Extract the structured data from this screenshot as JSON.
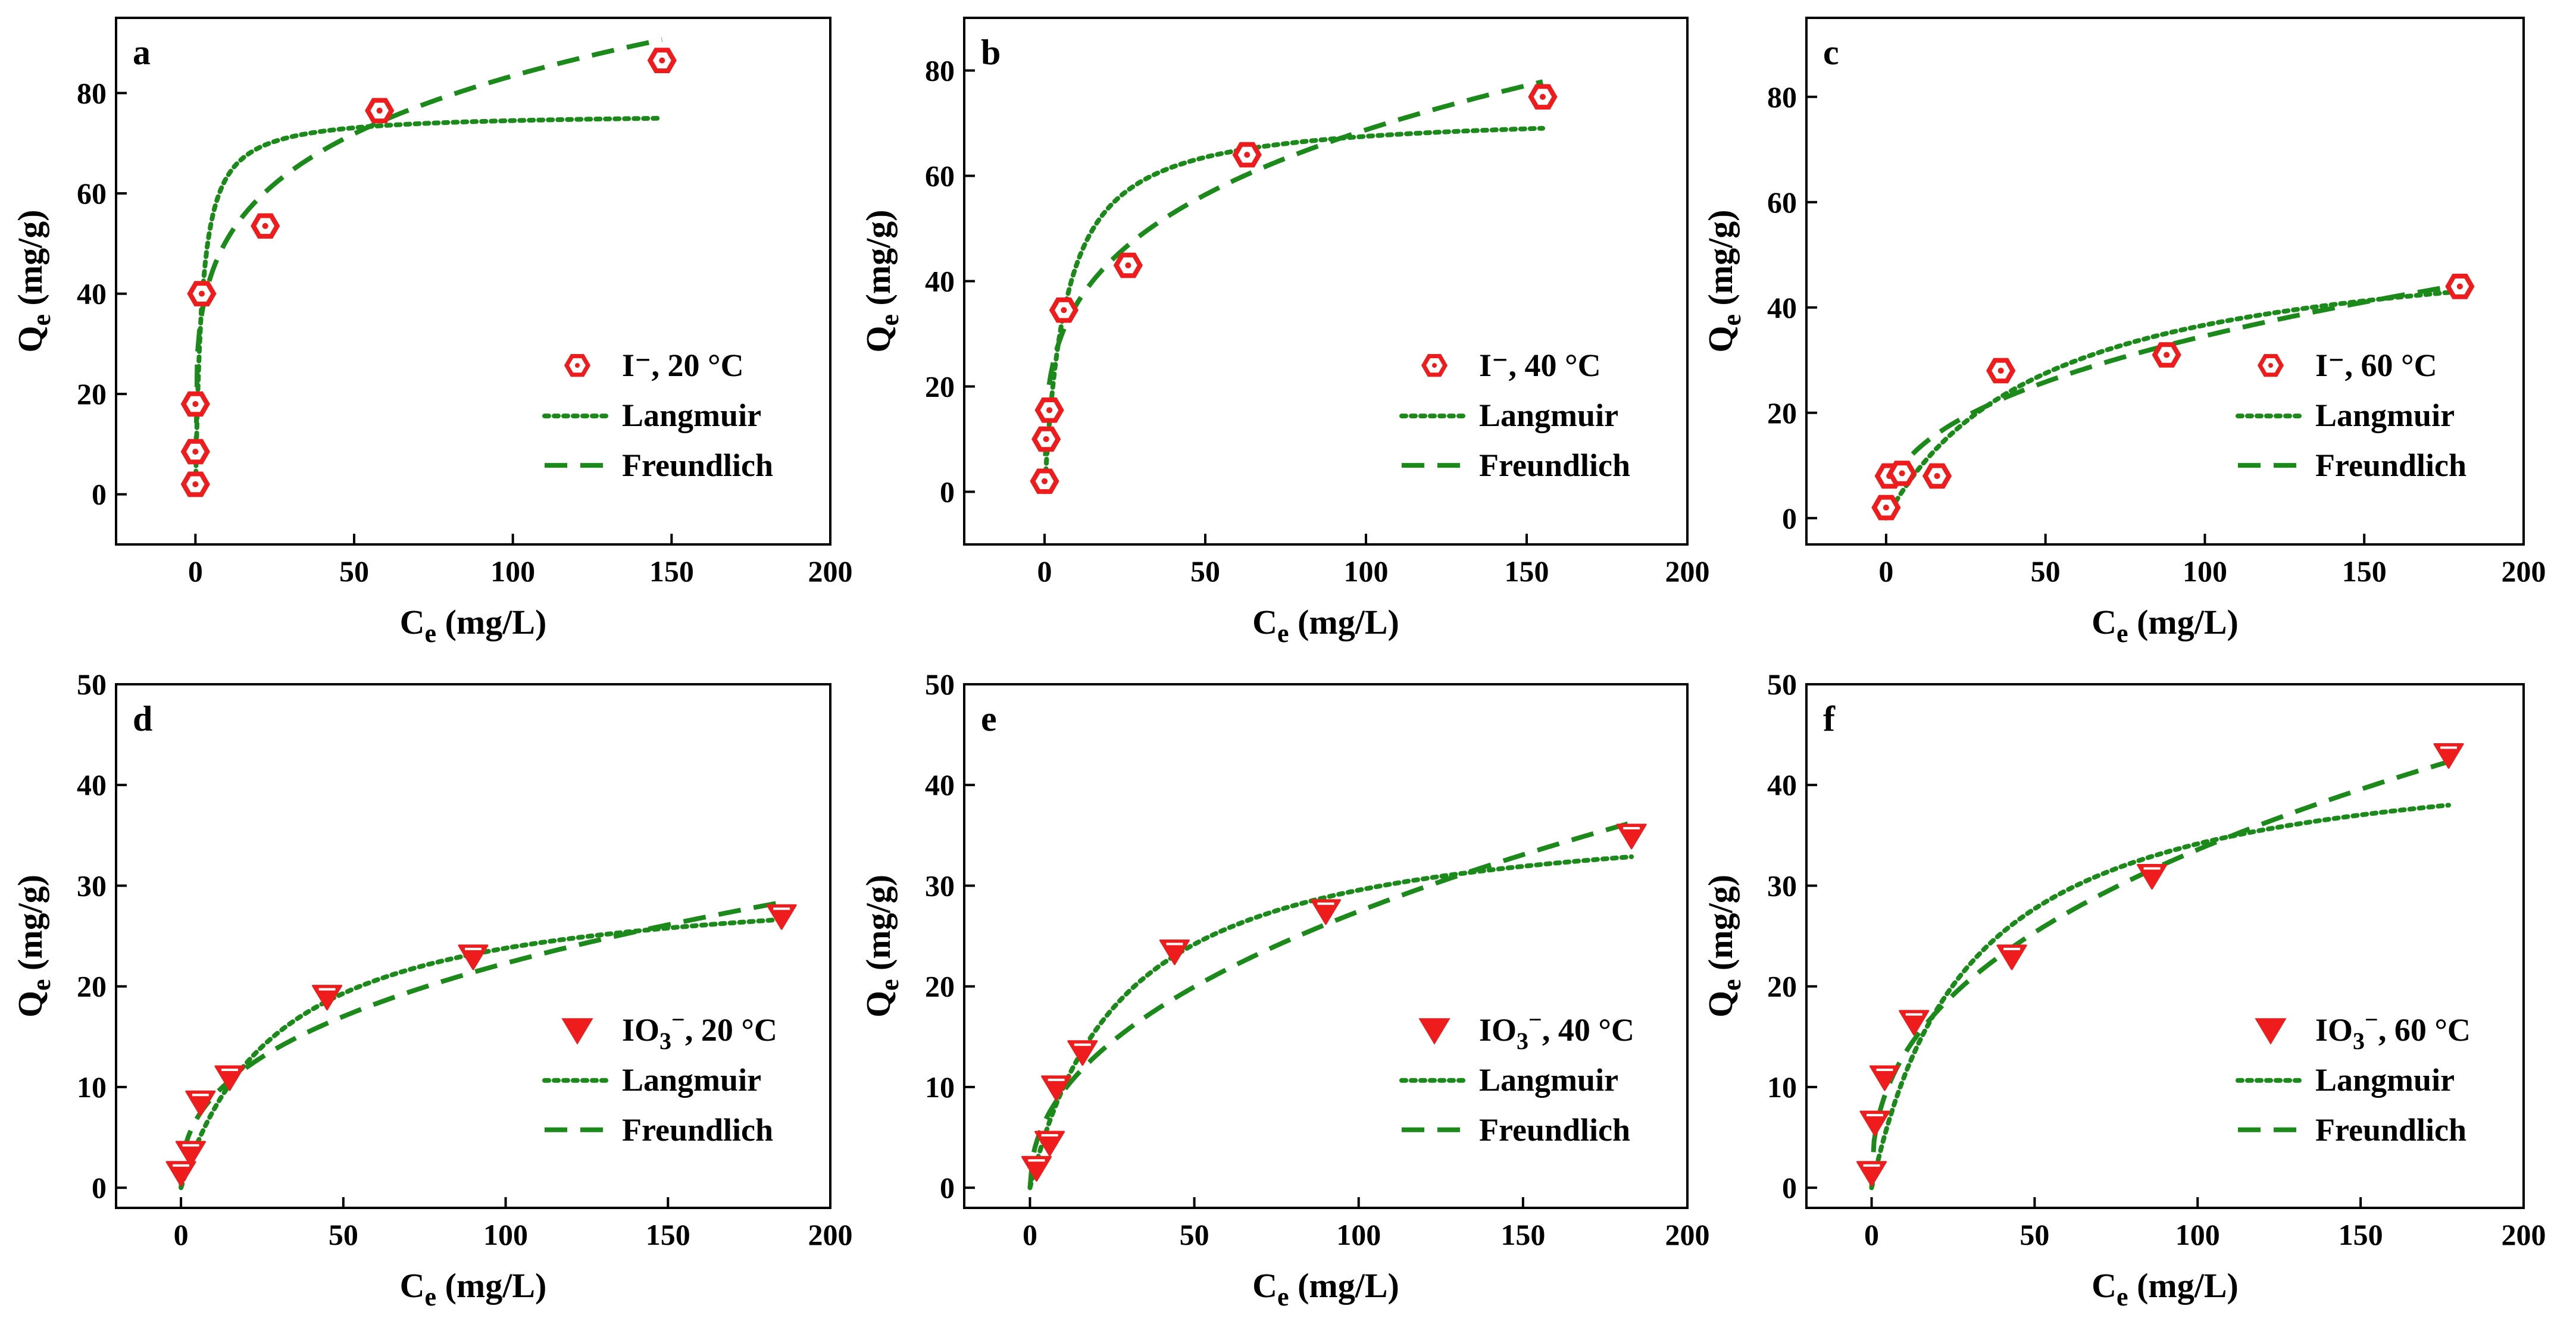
{
  "figure": {
    "colors": {
      "marker": "#ee1c1c",
      "langmuir": "#1b8a1b",
      "freundlich": "#1b8a1b",
      "axis": "#000000",
      "background": "#ffffff"
    }
  },
  "chart_data": [
    {
      "panel": "a",
      "type": "scatter",
      "marker": "hexagon",
      "xlabel": "C",
      "xlabel_sub": "e",
      "xlabel_unit": "(mg/L)",
      "ylabel": "Q",
      "ylabel_sub": "e",
      "ylabel_unit": "(mg/g)",
      "xlim": [
        -25,
        200
      ],
      "ylim": [
        -10,
        95
      ],
      "xticks": [
        0,
        50,
        100,
        150,
        200
      ],
      "yticks": [
        0,
        20,
        40,
        60,
        80
      ],
      "xtick_labels": [
        "0",
        "50",
        "100",
        "150",
        "200"
      ],
      "ytick_labels": [
        "0",
        "20",
        "40",
        "60",
        "80"
      ],
      "legend": {
        "placement": "center-right",
        "data_label": "I⁻, 20 °C",
        "langmuir_label": "Langmuir",
        "freundlich_label": "Freundlich"
      },
      "series": [
        {
          "name": "I⁻, 20 °C",
          "x": [
            0,
            0,
            0,
            2,
            22,
            58,
            147
          ],
          "y": [
            2,
            8.5,
            18,
            40,
            53.5,
            76.5,
            86.5
          ]
        },
        {
          "name": "Langmuir",
          "model": "langmuir",
          "qmax": 76.0,
          "k": 0.5,
          "xmax": 147
        },
        {
          "name": "Freundlich",
          "model": "freundlich",
          "kf": 31.0,
          "n": 0.215,
          "xmax": 147
        }
      ]
    },
    {
      "panel": "b",
      "type": "scatter",
      "marker": "hexagon",
      "xlabel": "C",
      "xlabel_sub": "e",
      "xlabel_unit": "(mg/L)",
      "ylabel": "Q",
      "ylabel_sub": "e",
      "ylabel_unit": "(mg/g)",
      "xlim": [
        -25,
        200
      ],
      "ylim": [
        -10,
        90
      ],
      "xticks": [
        0,
        50,
        100,
        150,
        200
      ],
      "yticks": [
        0,
        20,
        40,
        60,
        80
      ],
      "xtick_labels": [
        "0",
        "50",
        "100",
        "150",
        "200"
      ],
      "ytick_labels": [
        "0",
        "20",
        "40",
        "60",
        "80"
      ],
      "legend": {
        "placement": "center-right",
        "data_label": "I⁻, 40 °C",
        "langmuir_label": "Langmuir",
        "freundlich_label": "Freundlich"
      },
      "series": [
        {
          "name": "I⁻, 40 °C",
          "x": [
            0,
            0.5,
            1.5,
            6,
            26,
            63,
            155
          ],
          "y": [
            2,
            10,
            15.5,
            34.5,
            43,
            64,
            75
          ]
        },
        {
          "name": "Langmuir",
          "model": "langmuir",
          "qmax": 72.0,
          "k": 0.15,
          "xmax": 155
        },
        {
          "name": "Freundlich",
          "model": "freundlich",
          "kf": 18.5,
          "n": 0.285,
          "xmax": 155
        }
      ]
    },
    {
      "panel": "c",
      "type": "scatter",
      "marker": "hexagon",
      "xlabel": "C",
      "xlabel_sub": "e",
      "xlabel_unit": "(mg/L)",
      "ylabel": "Q",
      "ylabel_sub": "e",
      "ylabel_unit": "(mg/g)",
      "xlim": [
        -25,
        200
      ],
      "ylim": [
        -5,
        95
      ],
      "xticks": [
        0,
        50,
        100,
        150,
        200
      ],
      "yticks": [
        0,
        20,
        40,
        60,
        80
      ],
      "xtick_labels": [
        "0",
        "50",
        "100",
        "150",
        "200"
      ],
      "ytick_labels": [
        "0",
        "20",
        "40",
        "60",
        "80"
      ],
      "legend": {
        "placement": "center-right",
        "data_label": "I⁻, 60 °C",
        "langmuir_label": "Langmuir",
        "freundlich_label": "Freundlich"
      },
      "series": [
        {
          "name": "I⁻, 60 °C",
          "x": [
            0,
            1,
            5,
            16,
            36,
            88,
            180
          ],
          "y": [
            2,
            8,
            8.5,
            8,
            28,
            31,
            44
          ]
        },
        {
          "name": "Langmuir",
          "model": "langmuir",
          "qmax": 55.0,
          "k": 0.02,
          "xmax": 180
        },
        {
          "name": "Freundlich",
          "model": "freundlich",
          "kf": 5.0,
          "n": 0.42,
          "xmax": 180
        }
      ]
    },
    {
      "panel": "d",
      "type": "scatter",
      "marker": "triangle-down",
      "xlabel": "C",
      "xlabel_sub": "e",
      "xlabel_unit": "(mg/L)",
      "ylabel": "Q",
      "ylabel_sub": "e",
      "ylabel_unit": "(mg/g)",
      "xlim": [
        -20,
        200
      ],
      "ylim": [
        -2,
        50
      ],
      "xticks": [
        0,
        50,
        100,
        150,
        200
      ],
      "yticks": [
        0,
        10,
        20,
        30,
        40,
        50
      ],
      "xtick_labels": [
        "0",
        "50",
        "100",
        "150",
        "200"
      ],
      "ytick_labels": [
        "0",
        "10",
        "20",
        "30",
        "40",
        "50"
      ],
      "legend": {
        "placement": "center-right",
        "data_label_main": "IO",
        "data_label_sub": "3",
        "data_label_sup": "−",
        "data_label_rest": ", 20 °C",
        "langmuir_label": "Langmuir",
        "freundlich_label": "Freundlich"
      },
      "series": [
        {
          "name": "IO3⁻, 20 °C",
          "x": [
            0,
            3,
            6,
            15,
            45,
            90,
            185
          ],
          "y": [
            1.5,
            3.5,
            8.5,
            11,
            19,
            23,
            27
          ]
        },
        {
          "name": "Langmuir",
          "model": "langmuir",
          "qmax": 31.0,
          "k": 0.033,
          "xmax": 185
        },
        {
          "name": "Freundlich",
          "model": "freundlich",
          "kf": 3.7,
          "n": 0.39,
          "xmax": 185
        }
      ]
    },
    {
      "panel": "e",
      "type": "scatter",
      "marker": "triangle-down",
      "xlabel": "C",
      "xlabel_sub": "e",
      "xlabel_unit": "(mg/L)",
      "ylabel": "Q",
      "ylabel_sub": "e",
      "ylabel_unit": "(mg/g)",
      "xlim": [
        -20,
        200
      ],
      "ylim": [
        -2,
        50
      ],
      "xticks": [
        0,
        50,
        100,
        150,
        200
      ],
      "yticks": [
        0,
        10,
        20,
        30,
        40,
        50
      ],
      "xtick_labels": [
        "0",
        "50",
        "100",
        "150",
        "200"
      ],
      "ytick_labels": [
        "0",
        "10",
        "20",
        "30",
        "40",
        "50"
      ],
      "legend": {
        "placement": "center-right",
        "data_label_main": "IO",
        "data_label_sub": "3",
        "data_label_sup": "−",
        "data_label_rest": ", 40 °C",
        "langmuir_label": "Langmuir",
        "freundlich_label": "Freundlich"
      },
      "series": [
        {
          "name": "IO3⁻, 40 °C",
          "x": [
            2,
            6,
            8,
            16,
            44,
            90,
            183
          ],
          "y": [
            2,
            4.5,
            10,
            13.5,
            23.5,
            27.5,
            35
          ]
        },
        {
          "name": "Langmuir",
          "model": "langmuir",
          "qmax": 38.0,
          "k": 0.035,
          "xmax": 183
        },
        {
          "name": "Freundlich",
          "model": "freundlich",
          "kf": 3.3,
          "n": 0.46,
          "xmax": 183
        }
      ]
    },
    {
      "panel": "f",
      "type": "scatter",
      "marker": "triangle-down",
      "xlabel": "C",
      "xlabel_sub": "e",
      "xlabel_unit": "(mg/L)",
      "ylabel": "Q",
      "ylabel_sub": "e",
      "ylabel_unit": "(mg/g)",
      "xlim": [
        -20,
        200
      ],
      "ylim": [
        -2,
        50
      ],
      "xticks": [
        0,
        50,
        100,
        150,
        200
      ],
      "yticks": [
        0,
        10,
        20,
        30,
        40,
        50
      ],
      "xtick_labels": [
        "0",
        "50",
        "100",
        "150",
        "200"
      ],
      "ytick_labels": [
        "0",
        "10",
        "20",
        "30",
        "40",
        "50"
      ],
      "legend": {
        "placement": "center-right",
        "data_label_main": "IO",
        "data_label_sub": "3",
        "data_label_sup": "−",
        "data_label_rest": ", 60 °C",
        "langmuir_label": "Langmuir",
        "freundlich_label": "Freundlich"
      },
      "series": [
        {
          "name": "IO3⁻, 60 °C",
          "x": [
            0,
            1,
            4,
            13,
            43,
            86,
            177
          ],
          "y": [
            1.5,
            6.5,
            11,
            16.5,
            23,
            31,
            43
          ]
        },
        {
          "name": "Langmuir",
          "model": "langmuir",
          "qmax": 44.5,
          "k": 0.033,
          "xmax": 177
        },
        {
          "name": "Freundlich",
          "model": "freundlich",
          "kf": 5.2,
          "n": 0.405,
          "xmax": 177
        }
      ]
    }
  ]
}
